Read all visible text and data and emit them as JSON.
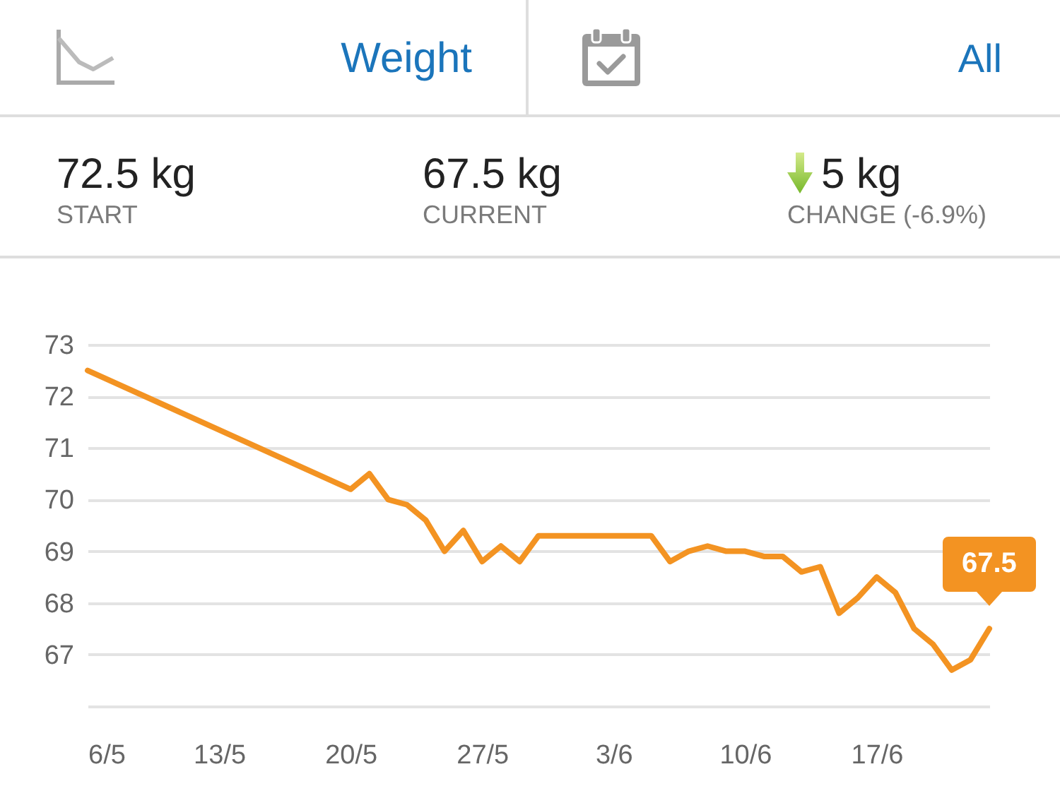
{
  "chart_data": {
    "type": "line",
    "annotations": [
      "Weight",
      "All",
      "72.5 kg",
      "START",
      "67.5 kg",
      "CURRENT",
      "5 kg",
      "CHANGE (-6.9%)",
      {
        "text": "67.5",
        "x": "--06-23",
        "y": 67.5
      }
    ],
    "x": [
      "--05-06",
      "--05-20",
      "--05-21",
      "--05-22",
      "--05-23",
      "--05-24",
      "--05-25",
      "--05-26",
      "--05-27",
      "--05-28",
      "--05-29",
      "--05-30",
      "--06-05",
      "--06-06",
      "--06-07",
      "--06-08",
      "--06-09",
      "--06-10",
      "--06-11",
      "--06-12",
      "--06-13",
      "--06-14",
      "--06-15",
      "--06-16",
      "--06-17",
      "--06-18",
      "--06-19",
      "--06-20",
      "--06-21",
      "--06-22",
      "--06-23"
    ],
    "series": [
      {
        "color": "#f39322",
        "values": [
          72.5,
          70.2,
          70.5,
          70.0,
          69.9,
          69.6,
          69.0,
          69.4,
          68.8,
          69.1,
          68.8,
          69.3,
          69.3,
          68.8,
          69.0,
          69.1,
          69.0,
          69.0,
          68.9,
          68.9,
          68.6,
          68.7,
          67.8,
          68.1,
          68.5,
          68.2,
          67.5,
          67.2,
          66.7,
          66.9,
          67.5
        ]
      }
    ],
    "xlim": [
      "--05-06",
      "--06-23"
    ],
    "xticks": [
      {
        "value": "--05-06",
        "label": "6/5"
      },
      {
        "value": "--05-13",
        "label": "13/5"
      },
      {
        "value": "--05-20",
        "label": "20/5"
      },
      {
        "value": "--05-27",
        "label": "27/5"
      },
      {
        "value": "--06-03",
        "label": "3/6"
      },
      {
        "value": "--06-10",
        "label": "10/6"
      },
      {
        "value": "--06-17",
        "label": "17/6"
      }
    ],
    "ylim": [
      66,
      73
    ],
    "yticks": [
      {
        "value": 66,
        "label": null
      },
      67,
      68,
      69,
      70,
      71,
      72,
      73
    ],
    "grid": "y"
  }
}
